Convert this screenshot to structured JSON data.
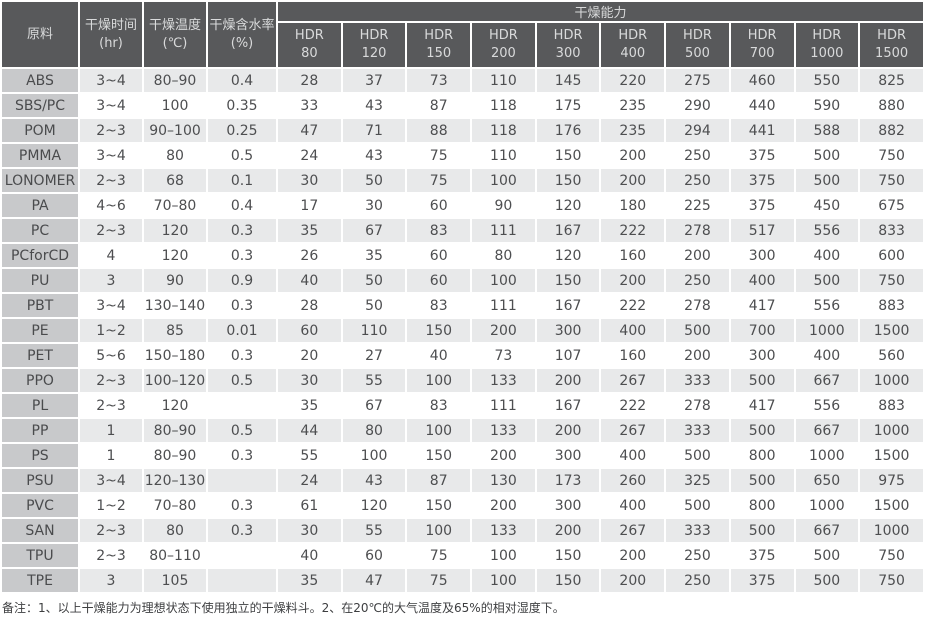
{
  "table": {
    "header": {
      "material": "原料",
      "time_label": "干燥时间",
      "time_unit": "(hr)",
      "temp_label": "干燥温度",
      "temp_unit": "(℃)",
      "moisture_label": "干燥含水率",
      "moisture_unit": "(%)",
      "capacity_group": "干燥能力",
      "hdr_prefix": "HDR",
      "hdr_sizes": [
        "80",
        "120",
        "150",
        "200",
        "300",
        "400",
        "500",
        "700",
        "1000",
        "1500"
      ]
    },
    "rows": [
      {
        "material": "ABS",
        "time": "3~4",
        "temp": "80–90",
        "moisture": "0.4",
        "values": [
          28,
          37,
          73,
          110,
          145,
          220,
          275,
          460,
          550,
          825
        ]
      },
      {
        "material": "SBS/PC",
        "time": "3~4",
        "temp": "100",
        "moisture": "0.35",
        "values": [
          33,
          43,
          87,
          118,
          175,
          235,
          290,
          440,
          590,
          880
        ]
      },
      {
        "material": "POM",
        "time": "2~3",
        "temp": "90–100",
        "moisture": "0.25",
        "values": [
          47,
          71,
          88,
          118,
          176,
          235,
          294,
          441,
          588,
          882
        ]
      },
      {
        "material": "PMMA",
        "time": "3~4",
        "temp": "80",
        "moisture": "0.5",
        "values": [
          24,
          43,
          75,
          110,
          150,
          200,
          250,
          375,
          500,
          750
        ]
      },
      {
        "material": "LONOMER",
        "time": "2~3",
        "temp": "68",
        "moisture": "0.1",
        "values": [
          30,
          50,
          75,
          100,
          150,
          200,
          250,
          375,
          500,
          750
        ]
      },
      {
        "material": "PA",
        "time": "4~6",
        "temp": "70–80",
        "moisture": "0.4",
        "values": [
          17,
          30,
          60,
          90,
          120,
          180,
          225,
          375,
          450,
          675
        ]
      },
      {
        "material": "PC",
        "time": "2~3",
        "temp": "120",
        "moisture": "0.3",
        "values": [
          35,
          67,
          83,
          111,
          167,
          222,
          278,
          517,
          556,
          833
        ]
      },
      {
        "material": "PCforCD",
        "time": "4",
        "temp": "120",
        "moisture": "0.3",
        "values": [
          26,
          35,
          60,
          80,
          120,
          160,
          200,
          300,
          400,
          600
        ]
      },
      {
        "material": "PU",
        "time": "3",
        "temp": "90",
        "moisture": "0.9",
        "values": [
          40,
          50,
          60,
          100,
          150,
          200,
          250,
          400,
          500,
          750
        ]
      },
      {
        "material": "PBT",
        "time": "3~4",
        "temp": "130–140",
        "moisture": "0.3",
        "values": [
          28,
          50,
          83,
          111,
          167,
          222,
          278,
          417,
          556,
          883
        ]
      },
      {
        "material": "PE",
        "time": "1~2",
        "temp": "85",
        "moisture": "0.01",
        "values": [
          60,
          110,
          150,
          200,
          300,
          400,
          500,
          700,
          1000,
          1500
        ]
      },
      {
        "material": "PET",
        "time": "5~6",
        "temp": "150–180",
        "moisture": "0.3",
        "values": [
          20,
          27,
          40,
          73,
          107,
          160,
          200,
          300,
          400,
          560
        ]
      },
      {
        "material": "PPO",
        "time": "2~3",
        "temp": "100–120",
        "moisture": "0.5",
        "values": [
          30,
          55,
          100,
          133,
          200,
          267,
          333,
          500,
          667,
          1000
        ]
      },
      {
        "material": "PL",
        "time": "2~3",
        "temp": "120",
        "moisture": "",
        "values": [
          35,
          67,
          83,
          111,
          167,
          222,
          278,
          417,
          556,
          883
        ]
      },
      {
        "material": "PP",
        "time": "1",
        "temp": "80–90",
        "moisture": "0.5",
        "values": [
          44,
          80,
          100,
          133,
          200,
          267,
          333,
          500,
          667,
          1000
        ]
      },
      {
        "material": "PS",
        "time": "1",
        "temp": "80–90",
        "moisture": "0.3",
        "values": [
          55,
          100,
          150,
          200,
          300,
          400,
          500,
          800,
          1000,
          1500
        ]
      },
      {
        "material": "PSU",
        "time": "3~4",
        "temp": "120–130",
        "moisture": "",
        "values": [
          24,
          43,
          87,
          130,
          173,
          260,
          325,
          500,
          650,
          975
        ]
      },
      {
        "material": "PVC",
        "time": "1~2",
        "temp": "70–80",
        "moisture": "0.3",
        "values": [
          61,
          120,
          150,
          200,
          300,
          400,
          500,
          800,
          1000,
          1500
        ]
      },
      {
        "material": "SAN",
        "time": "2~3",
        "temp": "80",
        "moisture": "0.3",
        "values": [
          30,
          55,
          100,
          133,
          200,
          267,
          333,
          500,
          667,
          1000
        ]
      },
      {
        "material": "TPU",
        "time": "2~3",
        "temp": "80–110",
        "moisture": "",
        "values": [
          40,
          60,
          75,
          100,
          150,
          200,
          250,
          375,
          500,
          750
        ]
      },
      {
        "material": "TPE",
        "time": "3",
        "temp": "105",
        "moisture": "",
        "values": [
          35,
          47,
          75,
          100,
          150,
          200,
          250,
          375,
          500,
          750
        ]
      }
    ]
  },
  "footer": {
    "note": "备注：1、以上干燥能力为理想状态下使用独立的干燥料斗。2、在20℃的大气温度及65%的相对湿度下。"
  },
  "colors": {
    "header_bg": "#58595b",
    "header_text": "#d9dadb",
    "material_col_bg": "#c8c9cb",
    "stripe_bg": "#e8e9ea",
    "data_text": "#4d4e50"
  }
}
